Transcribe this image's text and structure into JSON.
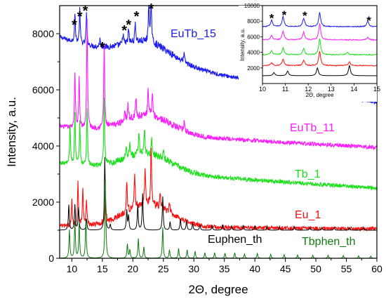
{
  "chart_data": {
    "type": "line",
    "xlabel": "2Θ, degree",
    "ylabel": "Intensity, a.u.",
    "xlim": [
      8,
      60
    ],
    "ylim": [
      0,
      9000
    ],
    "x_ticks": [
      10,
      15,
      20,
      25,
      30,
      35,
      40,
      45,
      50,
      55,
      60
    ],
    "y_ticks": [
      0,
      2000,
      4000,
      6000,
      8000
    ],
    "series": [
      {
        "name": "EuTb_15",
        "color": "#1c1cf0",
        "baseline_start": 7900,
        "baseline_end": 5550,
        "peaks": [
          [
            10.5,
            1000
          ],
          [
            11.3,
            1200
          ],
          [
            12.4,
            1100
          ],
          [
            14.6,
            300
          ],
          [
            18.4,
            400
          ],
          [
            19.3,
            500
          ],
          [
            20.4,
            700
          ],
          [
            22.6,
            1400
          ],
          [
            23.0,
            1500
          ],
          [
            28.4,
            300
          ]
        ]
      },
      {
        "name": "EuTb_11",
        "color": "#ff1cff",
        "baseline_start": 4700,
        "baseline_end": 3950,
        "peaks": [
          [
            10.5,
            2000
          ],
          [
            11.2,
            1800
          ],
          [
            12.5,
            3900
          ],
          [
            15.3,
            3000
          ],
          [
            18.7,
            400
          ],
          [
            19.2,
            600
          ],
          [
            20.5,
            700
          ],
          [
            22.5,
            900
          ],
          [
            23.2,
            900
          ],
          [
            28.4,
            300
          ]
        ]
      },
      {
        "name": "Tb_1",
        "color": "#1ce01c",
        "baseline_start": 3400,
        "baseline_end": 2500,
        "peaks": [
          [
            9.7,
            1400
          ],
          [
            10.5,
            1800
          ],
          [
            11.3,
            1500
          ],
          [
            12.5,
            2100
          ],
          [
            15.3,
            2300
          ],
          [
            18.9,
            500
          ],
          [
            19.5,
            600
          ],
          [
            21.0,
            800
          ],
          [
            21.9,
            900
          ],
          [
            23.1,
            500
          ],
          [
            25.0,
            300
          ]
        ]
      },
      {
        "name": "Eu_1",
        "color": "#ff1010",
        "baseline_start": 1150,
        "baseline_end": 1050,
        "peaks": [
          [
            10.0,
            900
          ],
          [
            11.0,
            1600
          ],
          [
            11.8,
            1300
          ],
          [
            12.4,
            900
          ],
          [
            15.5,
            1000
          ],
          [
            19.0,
            1100
          ],
          [
            20.3,
            1300
          ],
          [
            22.0,
            1400
          ],
          [
            23.0,
            2100
          ],
          [
            24.5,
            500
          ],
          [
            26.0,
            300
          ]
        ]
      },
      {
        "name": "Euphen_th",
        "color": "#000000",
        "baseline_start": 1000,
        "baseline_end": 1000,
        "peaks": [
          [
            9.5,
            900
          ],
          [
            10.5,
            900
          ],
          [
            11.1,
            800
          ],
          [
            12.4,
            400
          ],
          [
            15.4,
            2600
          ],
          [
            16.3,
            200
          ],
          [
            19.0,
            700
          ],
          [
            19.3,
            500
          ],
          [
            20.8,
            900
          ],
          [
            21.6,
            1300
          ],
          [
            24.9,
            1200
          ],
          [
            26.1,
            300
          ],
          [
            27.8,
            400
          ],
          [
            28.8,
            350
          ],
          [
            29.8,
            250
          ],
          [
            31.0,
            200
          ],
          [
            33.0,
            180
          ],
          [
            34.7,
            200
          ],
          [
            36.2,
            150
          ],
          [
            38.1,
            180
          ],
          [
            40.0,
            150
          ],
          [
            42.0,
            150
          ],
          [
            44.0,
            120
          ],
          [
            46.5,
            120
          ],
          [
            49.0,
            110
          ],
          [
            51.0,
            100
          ],
          [
            53.0,
            100
          ],
          [
            55.5,
            90
          ],
          [
            57.8,
            90
          ]
        ]
      },
      {
        "name": "Tbphen_th",
        "color": "#0f7a0f",
        "baseline_start": 0,
        "baseline_end": 0,
        "peaks": [
          [
            9.6,
            1000
          ],
          [
            10.5,
            1300
          ],
          [
            11.2,
            1200
          ],
          [
            12.3,
            1400
          ],
          [
            15.5,
            2800
          ],
          [
            19.1,
            500
          ],
          [
            19.5,
            300
          ],
          [
            20.9,
            700
          ],
          [
            21.8,
            400
          ],
          [
            24.9,
            1100
          ],
          [
            26.0,
            300
          ],
          [
            27.5,
            350
          ],
          [
            28.9,
            300
          ],
          [
            30.2,
            250
          ],
          [
            31.8,
            200
          ],
          [
            33.4,
            200
          ],
          [
            35.1,
            180
          ],
          [
            36.7,
            200
          ],
          [
            38.3,
            150
          ],
          [
            40.4,
            170
          ],
          [
            42.6,
            140
          ],
          [
            44.8,
            130
          ],
          [
            47.0,
            120
          ],
          [
            49.5,
            110
          ],
          [
            52.0,
            110
          ],
          [
            54.5,
            100
          ],
          [
            57.0,
            90
          ],
          [
            59.0,
            80
          ]
        ]
      }
    ],
    "annotations": [
      {
        "text": "*",
        "x": 10.4,
        "y": 8400
      },
      {
        "text": "*",
        "x": 11.3,
        "y": 8700
      },
      {
        "text": "*",
        "x": 12.2,
        "y": 8900
      },
      {
        "text": "*",
        "x": 15.0,
        "y": 7600
      },
      {
        "text": "*",
        "x": 18.6,
        "y": 8200
      },
      {
        "text": "*",
        "x": 19.3,
        "y": 8400
      },
      {
        "text": "*",
        "x": 20.6,
        "y": 8700
      },
      {
        "text": "*",
        "x": 23.0,
        "y": 8980
      }
    ]
  },
  "inset": {
    "xlabel": "2Θ, degree",
    "ylabel": "Intensity, a.u.",
    "xlim": [
      10,
      15
    ],
    "ylim": [
      0,
      10000
    ],
    "x_ticks": [
      10,
      11,
      12,
      13,
      14,
      15
    ],
    "y_ticks": [
      2000,
      4000,
      6000,
      8000,
      10000
    ],
    "series": [
      {
        "color": "#1c1cf0",
        "baseline": 7300,
        "peaks": [
          [
            10.4,
            800
          ],
          [
            10.9,
            1300
          ],
          [
            11.8,
            1100
          ],
          [
            12.5,
            1800
          ],
          [
            14.6,
            700
          ]
        ]
      },
      {
        "color": "#ff1cff",
        "baseline": 5600,
        "peaks": [
          [
            10.4,
            600
          ],
          [
            10.9,
            1100
          ],
          [
            11.8,
            1000
          ],
          [
            12.5,
            2100
          ],
          [
            14.6,
            300
          ]
        ]
      },
      {
        "color": "#1ce01c",
        "baseline": 3700,
        "peaks": [
          [
            10.4,
            500
          ],
          [
            10.9,
            900
          ],
          [
            11.8,
            800
          ],
          [
            12.5,
            2100
          ],
          [
            13.7,
            300
          ]
        ]
      },
      {
        "color": "#ff1010",
        "baseline": 2300,
        "peaks": [
          [
            10.4,
            400
          ],
          [
            10.9,
            800
          ],
          [
            11.8,
            700
          ],
          [
            12.5,
            1800
          ],
          [
            13.8,
            500
          ]
        ]
      },
      {
        "color": "#000000",
        "baseline": 1000,
        "peaks": [
          [
            10.5,
            400
          ],
          [
            11.1,
            600
          ],
          [
            12.4,
            1000
          ],
          [
            13.8,
            1300
          ]
        ]
      }
    ],
    "annotations": [
      {
        "text": "*",
        "x": 10.4,
        "y": 8600
      },
      {
        "text": "*",
        "x": 10.95,
        "y": 9000
      },
      {
        "text": "*",
        "x": 11.85,
        "y": 8900
      },
      {
        "text": "*",
        "x": 14.65,
        "y": 8300
      }
    ]
  }
}
